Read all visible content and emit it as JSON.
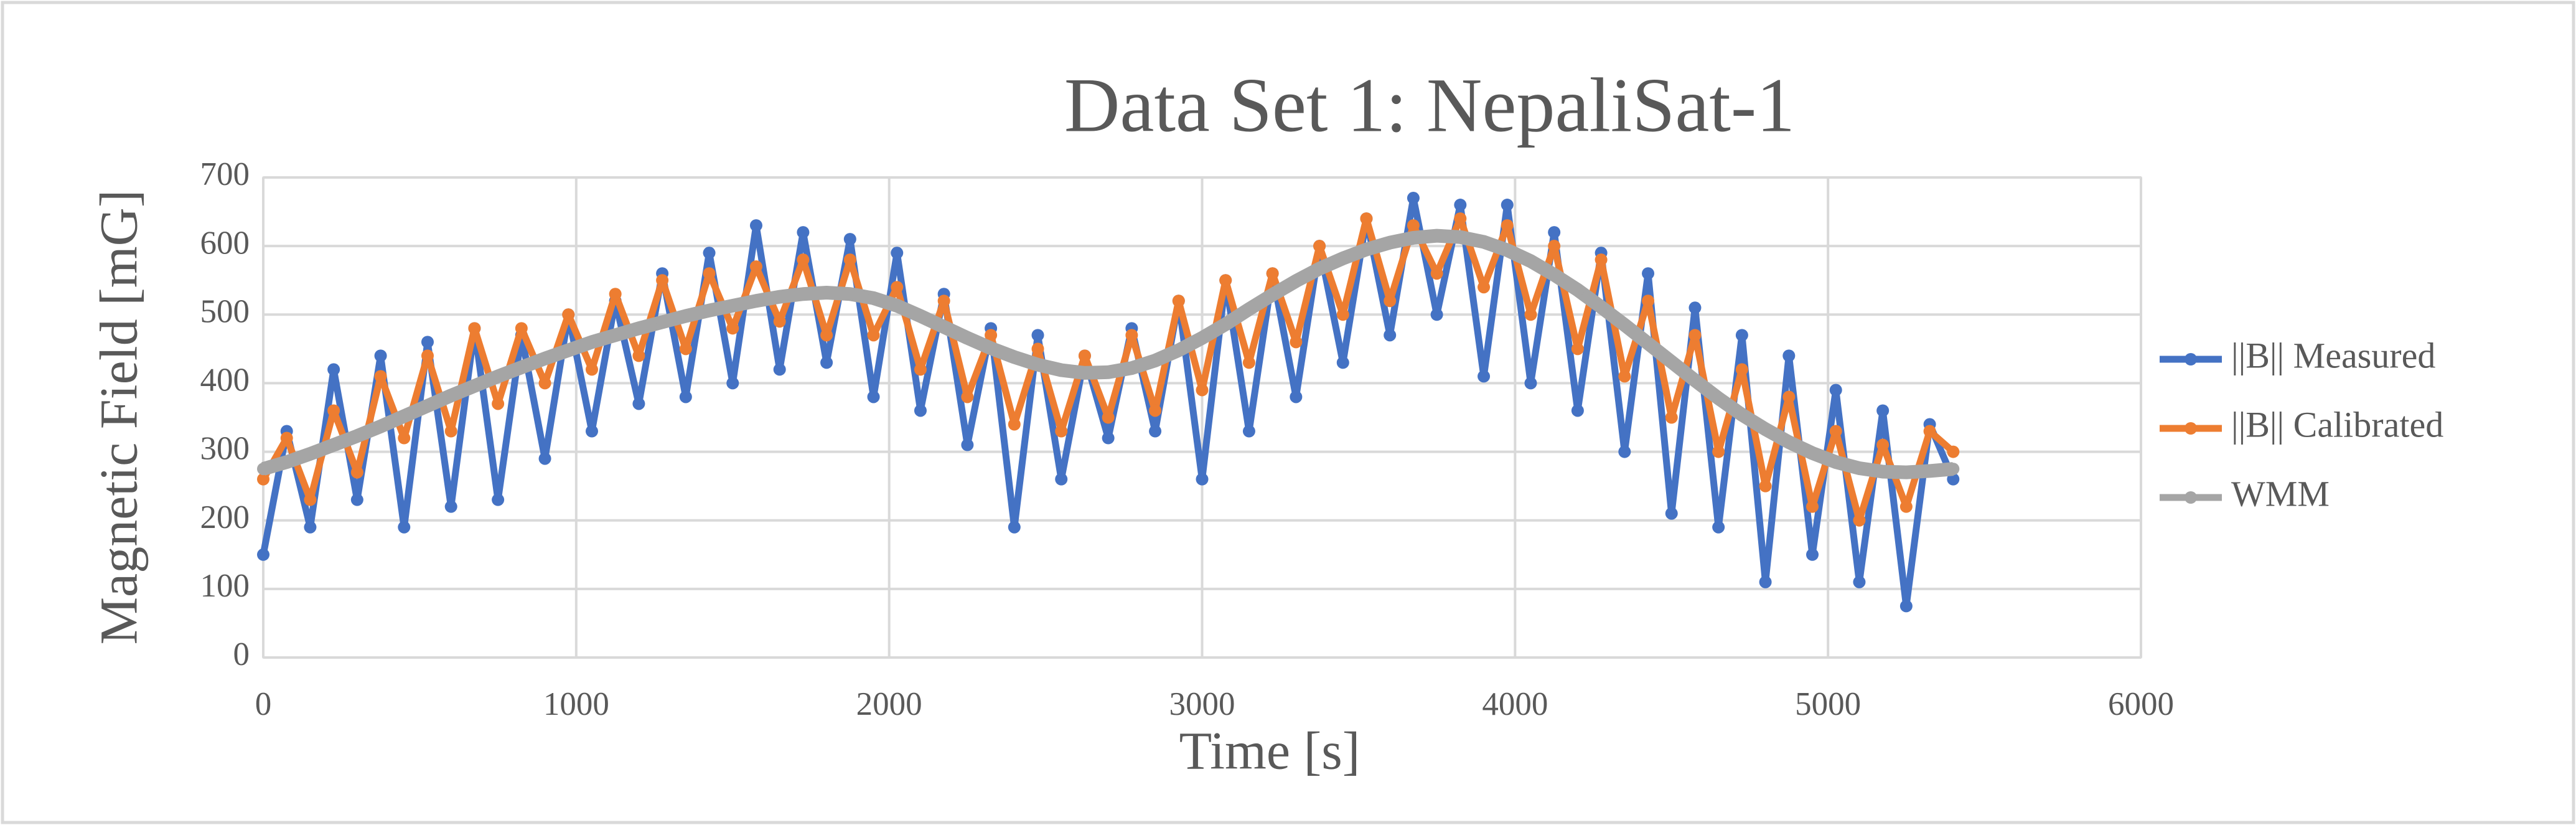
{
  "chart_data": {
    "type": "line",
    "title": "Data Set 1: NepaliSat-1",
    "x_label": "Time [s]",
    "y_label": "Magnetic Field [mG]",
    "xlim": [
      0,
      6000
    ],
    "xticks": [
      0,
      1000,
      2000,
      3000,
      4000,
      5000,
      6000
    ],
    "ylim": [
      0,
      700
    ],
    "yticks": [
      0,
      100,
      200,
      300,
      400,
      500,
      600,
      700
    ],
    "grid": true,
    "legend": "right",
    "x": [
      0,
      75,
      150,
      225,
      300,
      375,
      450,
      525,
      600,
      675,
      750,
      825,
      900,
      975,
      1050,
      1125,
      1200,
      1275,
      1350,
      1425,
      1500,
      1575,
      1650,
      1725,
      1800,
      1875,
      1950,
      2025,
      2100,
      2175,
      2250,
      2325,
      2400,
      2475,
      2550,
      2625,
      2700,
      2775,
      2850,
      2925,
      3000,
      3075,
      3150,
      3225,
      3300,
      3375,
      3450,
      3525,
      3600,
      3675,
      3750,
      3825,
      3900,
      3975,
      4050,
      4125,
      4200,
      4275,
      4350,
      4425,
      4500,
      4575,
      4650,
      4725,
      4800,
      4875,
      4950,
      5025,
      5100,
      5175,
      5250,
      5325,
      5400
    ],
    "series": [
      {
        "name": "||B|| Measured",
        "color": "#4472c4",
        "values": [
          150,
          330,
          190,
          420,
          230,
          440,
          190,
          460,
          220,
          480,
          230,
          470,
          290,
          500,
          330,
          520,
          370,
          560,
          380,
          590,
          400,
          630,
          420,
          620,
          430,
          610,
          380,
          590,
          360,
          530,
          310,
          480,
          190,
          470,
          260,
          440,
          320,
          480,
          330,
          520,
          260,
          550,
          330,
          560,
          380,
          600,
          430,
          640,
          470,
          670,
          500,
          660,
          410,
          660,
          400,
          620,
          360,
          590,
          300,
          560,
          210,
          510,
          190,
          470,
          110,
          440,
          150,
          390,
          110,
          360,
          75,
          340,
          260
        ]
      },
      {
        "name": "||B|| Calibrated",
        "color": "#ed7d31",
        "values": [
          260,
          320,
          230,
          360,
          270,
          410,
          320,
          440,
          330,
          480,
          370,
          480,
          400,
          500,
          420,
          530,
          440,
          550,
          450,
          560,
          480,
          570,
          490,
          580,
          470,
          580,
          470,
          540,
          420,
          520,
          380,
          470,
          340,
          450,
          330,
          440,
          350,
          470,
          360,
          520,
          390,
          550,
          430,
          560,
          460,
          600,
          500,
          640,
          520,
          630,
          560,
          640,
          540,
          630,
          500,
          600,
          450,
          580,
          410,
          520,
          350,
          470,
          300,
          420,
          250,
          380,
          220,
          330,
          200,
          310,
          220,
          330,
          300
        ]
      },
      {
        "name": "WMM",
        "color": "#a5a5a5",
        "values": [
          275,
          285,
          297,
          310,
          323,
          337,
          352,
          367,
          382,
          396,
          410,
          423,
          436,
          448,
          460,
          470,
          480,
          489,
          498,
          506,
          513,
          520,
          526,
          530,
          532,
          530,
          524,
          513,
          498,
          482,
          466,
          451,
          438,
          427,
          419,
          415,
          416,
          422,
          433,
          448,
          466,
          486,
          508,
          529,
          549,
          567,
          582,
          595,
          605,
          612,
          615,
          613,
          606,
          594,
          578,
          558,
          536,
          511,
          485,
          458,
          431,
          404,
          378,
          354,
          333,
          314,
          298,
          285,
          276,
          271,
          270,
          272,
          275
        ]
      }
    ]
  }
}
